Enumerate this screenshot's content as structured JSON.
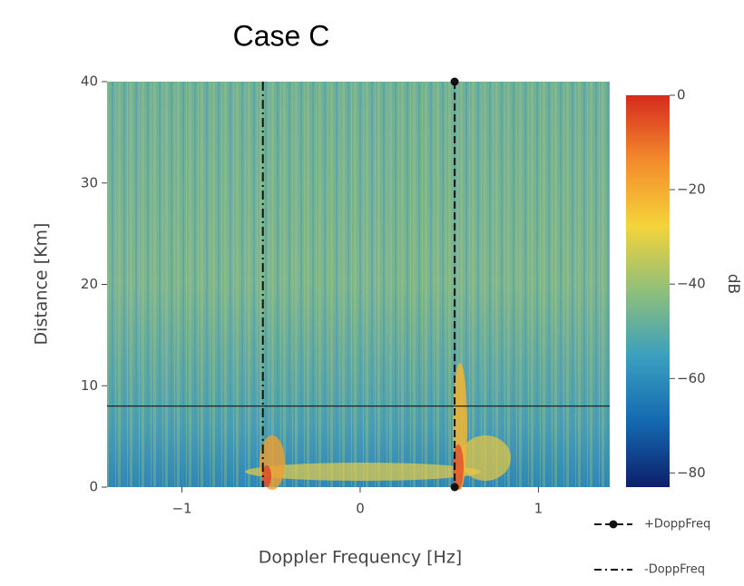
{
  "chart_data": {
    "type": "heatmap",
    "title": "Case C",
    "x_label": "Doppler Frequency [Hz]",
    "y_label": "Distance [Km]",
    "xlim": [
      -1.42,
      1.4
    ],
    "ylim": [
      0,
      40
    ],
    "xticks": [
      {
        "value": -1,
        "label": "−1"
      },
      0,
      1
    ],
    "yticks": [
      0,
      10,
      20,
      30,
      40
    ],
    "colorbar": {
      "label": "dB",
      "lim": [
        -83,
        0
      ],
      "ticks": [
        0,
        {
          "value": -20,
          "label": "−20"
        },
        {
          "value": -40,
          "label": "−40"
        },
        {
          "value": -60,
          "label": "−60"
        },
        {
          "value": -80,
          "label": "−80"
        }
      ],
      "colors": [
        "#0d1f6b",
        "#1469b0",
        "#3a9fbf",
        "#8fbf7a",
        "#f5d33a",
        "#f38b2b",
        "#d62a1e"
      ]
    },
    "series": [
      {
        "name": "+DoppFreq",
        "x": 0.53,
        "color": "#111111",
        "style": "solid-marker"
      },
      {
        "name": "-DoppFreq",
        "x": -0.546,
        "color": "#111111",
        "style": "dashdot"
      }
    ],
    "hline": {
      "y": 8,
      "color": "#222222"
    }
  }
}
